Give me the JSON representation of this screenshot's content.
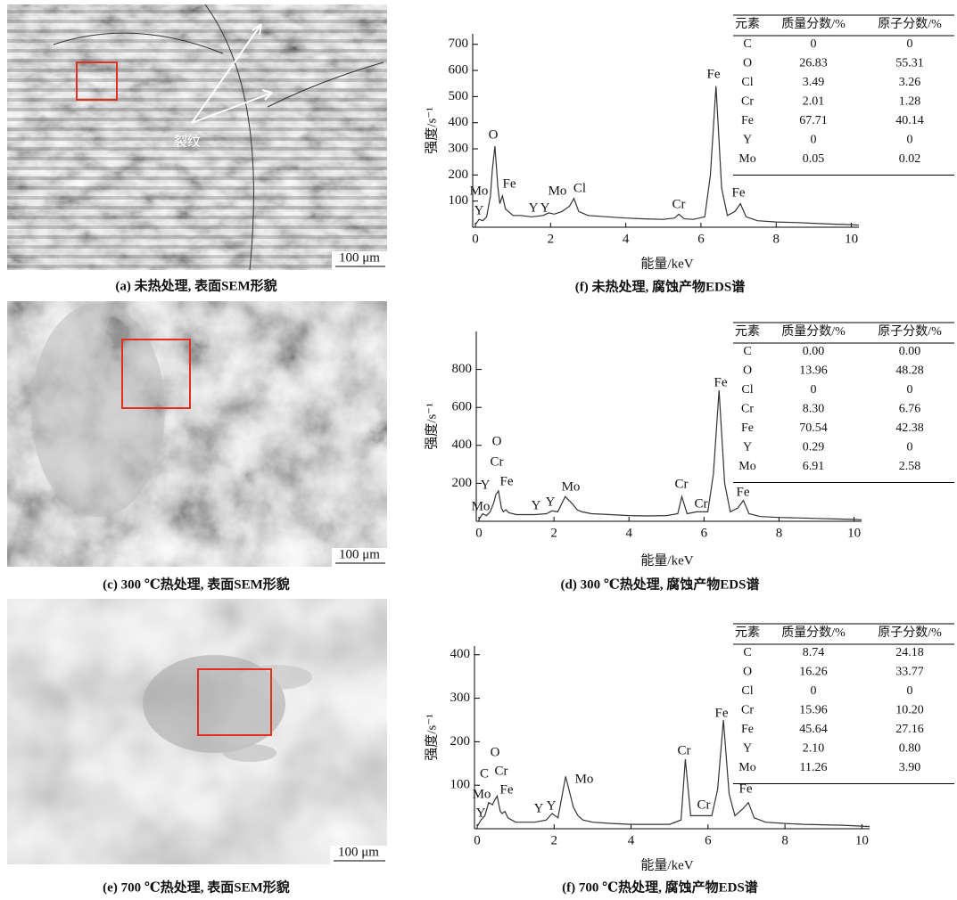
{
  "images": [
    {
      "caption": "(a) 未热处理, 表面SEM形貌",
      "scale_bar": "100 μm",
      "annotation": "裂纹"
    },
    {
      "caption": "(c) 300 ℃热处理, 表面SEM形貌",
      "scale_bar": "100 μm"
    },
    {
      "caption": "(e) 700 ℃热处理, 表面SEM形貌",
      "scale_bar": "100 μm"
    }
  ],
  "chart_data": [
    {
      "type": "line",
      "caption": "(f) 未热处理, 腐蚀产物EDS谱",
      "x_label": "能量/keV",
      "y_label": "强度/s⁻¹",
      "color": "#333333",
      "xlim": [
        0,
        10.2
      ],
      "ylim": [
        0,
        740
      ],
      "xticks": [
        0,
        2,
        4,
        6,
        8,
        10
      ],
      "yticks": [
        100,
        200,
        300,
        400,
        500,
        600,
        700
      ],
      "x": [
        0,
        0.1,
        0.2,
        0.3,
        0.4,
        0.45,
        0.52,
        0.6,
        0.65,
        0.72,
        0.8,
        1,
        1.2,
        1.5,
        1.8,
        1.95,
        2.1,
        2.3,
        2.5,
        2.62,
        2.75,
        3,
        3.5,
        4,
        4.5,
        5,
        5.3,
        5.41,
        5.55,
        5.8,
        6.1,
        6.25,
        6.4,
        6.55,
        6.7,
        6.9,
        7.05,
        7.2,
        7.5,
        8,
        8.5,
        9,
        9.5,
        10,
        10.2
      ],
      "values": [
        10,
        30,
        25,
        40,
        120,
        220,
        310,
        150,
        90,
        120,
        70,
        45,
        45,
        40,
        45,
        55,
        50,
        60,
        80,
        110,
        60,
        45,
        40,
        35,
        32,
        30,
        35,
        50,
        32,
        30,
        40,
        200,
        540,
        150,
        45,
        60,
        90,
        40,
        25,
        20,
        18,
        15,
        12,
        10,
        8
      ],
      "peak_labels": [
        "Mo",
        "Y",
        "O",
        "Fe",
        "Y",
        "Mo",
        "Y",
        "Cl",
        "Cr",
        "Fe",
        "Fe"
      ],
      "table": {
        "header": [
          "元素",
          "质量分数/%",
          "原子分数/%"
        ],
        "rows": [
          [
            "C",
            "0",
            "0"
          ],
          [
            "O",
            "26.83",
            "55.31"
          ],
          [
            "Cl",
            "3.49",
            "3.26"
          ],
          [
            "Cr",
            "2.01",
            "1.28"
          ],
          [
            "Fe",
            "67.71",
            "40.14"
          ],
          [
            "Y",
            "0",
            "0"
          ],
          [
            "Mo",
            "0.05",
            "0.02"
          ]
        ]
      }
    },
    {
      "type": "line",
      "caption": "(d) 300 ℃热处理, 腐蚀产物EDS谱",
      "x_label": "能量/keV",
      "y_label": "强度/s⁻¹",
      "color": "#333333",
      "xlim": [
        0,
        10.2
      ],
      "ylim": [
        0,
        1000
      ],
      "xticks": [
        0,
        2,
        4,
        6,
        8,
        10
      ],
      "yticks": [
        200,
        400,
        600,
        800
      ],
      "x": [
        0,
        0.1,
        0.2,
        0.3,
        0.4,
        0.45,
        0.52,
        0.6,
        0.65,
        0.72,
        0.8,
        1,
        1.2,
        1.5,
        1.8,
        1.95,
        2.1,
        2.3,
        2.5,
        2.62,
        2.75,
        3,
        3.5,
        4,
        4.5,
        5,
        5.3,
        5.41,
        5.55,
        5.8,
        6.1,
        6.25,
        6.4,
        6.55,
        6.7,
        6.9,
        7.05,
        7.2,
        7.5,
        8,
        8.5,
        9,
        9.5,
        10,
        10.2
      ],
      "values": [
        10,
        40,
        30,
        50,
        100,
        140,
        160,
        70,
        50,
        60,
        45,
        35,
        35,
        35,
        40,
        55,
        50,
        130,
        90,
        60,
        50,
        40,
        35,
        30,
        28,
        30,
        40,
        130,
        40,
        50,
        50,
        250,
        690,
        200,
        50,
        70,
        110,
        40,
        25,
        20,
        18,
        15,
        12,
        10,
        8
      ],
      "peak_labels": [
        "O",
        "Cr",
        "Y",
        "Fe",
        "Mo",
        "Y",
        "Y",
        "Mo",
        "Cr",
        "Cr",
        "Fe",
        "Fe"
      ],
      "table": {
        "header": [
          "元素",
          "质量分数/%",
          "原子分数/%"
        ],
        "rows": [
          [
            "C",
            "0.00",
            "0.00"
          ],
          [
            "O",
            "13.96",
            "48.28"
          ],
          [
            "Cl",
            "0",
            "0"
          ],
          [
            "Cr",
            "8.30",
            "6.76"
          ],
          [
            "Fe",
            "70.54",
            "42.38"
          ],
          [
            "Y",
            "0.29",
            "0"
          ],
          [
            "Mo",
            "6.91",
            "2.58"
          ]
        ]
      }
    },
    {
      "type": "line",
      "caption": "(f) 700 ℃热处理, 腐蚀产物EDS谱",
      "x_label": "能量/keV",
      "y_label": "强度/s⁻¹",
      "color": "#333333",
      "xlim": [
        0,
        10.2
      ],
      "ylim": [
        0,
        420
      ],
      "xticks": [
        0,
        2,
        4,
        6,
        8,
        10
      ],
      "yticks": [
        100,
        200,
        300,
        400
      ],
      "x": [
        0,
        0.1,
        0.2,
        0.3,
        0.4,
        0.45,
        0.52,
        0.6,
        0.65,
        0.72,
        0.8,
        1,
        1.2,
        1.5,
        1.8,
        1.95,
        2.1,
        2.3,
        2.5,
        2.62,
        2.75,
        3,
        3.5,
        4,
        4.5,
        5,
        5.3,
        5.41,
        5.55,
        5.8,
        6.1,
        6.25,
        6.4,
        6.55,
        6.7,
        6.9,
        7.05,
        7.2,
        7.5,
        8,
        8.5,
        9,
        9.5,
        10,
        10.2
      ],
      "values": [
        5,
        20,
        30,
        60,
        55,
        65,
        75,
        40,
        35,
        40,
        25,
        15,
        15,
        15,
        20,
        35,
        25,
        120,
        50,
        30,
        20,
        15,
        12,
        10,
        10,
        10,
        20,
        160,
        30,
        30,
        30,
        90,
        250,
        80,
        30,
        45,
        60,
        25,
        15,
        12,
        10,
        9,
        8,
        6,
        5
      ],
      "peak_labels": [
        "O",
        "C",
        "Cr",
        "Mo",
        "Fe",
        "Y",
        "Y",
        "Y",
        "Mo",
        "Cr",
        "Cr",
        "Fe",
        "Fe"
      ],
      "table": {
        "header": [
          "元素",
          "质量分数/%",
          "原子分数/%"
        ],
        "rows": [
          [
            "C",
            "8.74",
            "24.18"
          ],
          [
            "O",
            "16.26",
            "33.77"
          ],
          [
            "Cl",
            "0",
            "0"
          ],
          [
            "Cr",
            "15.96",
            "10.20"
          ],
          [
            "Fe",
            "45.64",
            "27.16"
          ],
          [
            "Y",
            "2.10",
            "0.80"
          ],
          [
            "Mo",
            "11.26",
            "3.90"
          ]
        ]
      }
    }
  ]
}
